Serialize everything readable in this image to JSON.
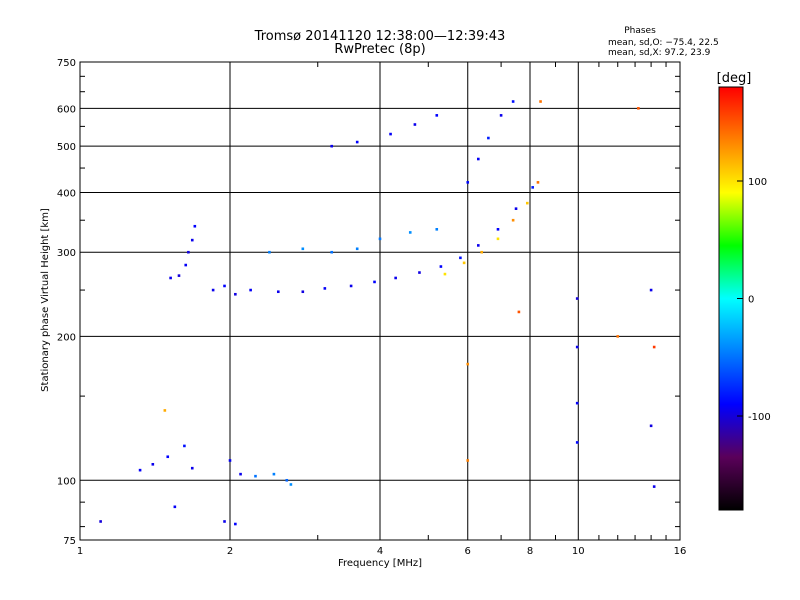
{
  "header": {
    "title": "Tromsø 20141120 12:38:00—12:39:43",
    "subtitle": "RwPretec (8p)",
    "phase_heading": "Phases",
    "phase_o": "mean, sd,O: −75.4, 22.5",
    "phase_x": "mean, sd,X:  97.2, 23.9"
  },
  "chart_data": {
    "type": "scatter",
    "title": "Tromsø 20141120 12:38:00—12:39:43",
    "subtitle": "RwPretec (8p)",
    "xlabel": "Frequency [MHz]",
    "ylabel": "Stationary phase Virtual Height [km]",
    "x_scale": "log",
    "y_scale": "log",
    "xlim": [
      1,
      16
    ],
    "ylim": [
      75,
      750
    ],
    "x_ticks": [
      1,
      2,
      4,
      6,
      8,
      10,
      16
    ],
    "x_tick_labels": [
      "1",
      "2",
      "4",
      "6",
      "8",
      "10",
      "16"
    ],
    "y_ticks": [
      75,
      100,
      200,
      300,
      400,
      500,
      600,
      750
    ],
    "y_tick_labels": [
      "75",
      "100",
      "200",
      "300",
      "400",
      "500",
      "600",
      "750"
    ],
    "grid": true,
    "colorbar": {
      "label": "[deg]",
      "range": [
        -180,
        180
      ],
      "ticks": [
        100,
        0,
        -100
      ],
      "tick_labels": [
        "100",
        "0",
        "-100"
      ],
      "stops": [
        "#000000",
        "#5a005a",
        "#0000ff",
        "#0080ff",
        "#00ffff",
        "#00ff00",
        "#ffff00",
        "#ff8000",
        "#ff0000"
      ]
    },
    "series": [
      {
        "points": [
          [
            1.52,
            265,
            -95
          ],
          [
            1.58,
            268,
            -100
          ],
          [
            1.63,
            282,
            -92
          ],
          [
            1.65,
            300,
            -98
          ],
          [
            1.68,
            318,
            -95
          ],
          [
            1.7,
            340,
            -90
          ],
          [
            1.85,
            250,
            -95
          ],
          [
            1.95,
            255,
            -90
          ],
          [
            2.05,
            245,
            -98
          ],
          [
            2.2,
            250,
            -92
          ],
          [
            2.5,
            248,
            -95
          ],
          [
            2.8,
            248,
            -98
          ],
          [
            3.1,
            252,
            -92
          ],
          [
            3.5,
            255,
            -95
          ],
          [
            3.9,
            260,
            -90
          ],
          [
            4.3,
            265,
            -95
          ],
          [
            4.8,
            272,
            -98
          ],
          [
            5.3,
            280,
            -90
          ],
          [
            5.8,
            292,
            -85
          ],
          [
            6.3,
            310,
            -95
          ],
          [
            6.9,
            335,
            -90
          ],
          [
            7.5,
            370,
            -95
          ],
          [
            8.1,
            410,
            -80
          ],
          [
            5.4,
            270,
            100
          ],
          [
            5.9,
            285,
            110
          ],
          [
            6.4,
            300,
            120
          ],
          [
            6.9,
            320,
            100
          ],
          [
            7.4,
            350,
            130
          ],
          [
            7.9,
            380,
            110
          ],
          [
            8.3,
            420,
            140
          ],
          [
            6.0,
            420,
            -88
          ],
          [
            6.3,
            470,
            -92
          ],
          [
            6.6,
            520,
            -80
          ],
          [
            7.0,
            580,
            -95
          ],
          [
            7.4,
            620,
            -85
          ],
          [
            3.2,
            500,
            -95
          ],
          [
            3.6,
            510,
            -90
          ],
          [
            4.2,
            530,
            -92
          ],
          [
            4.7,
            555,
            -95
          ],
          [
            5.2,
            580,
            -90
          ],
          [
            2.4,
            300,
            -45
          ],
          [
            2.8,
            305,
            -40
          ],
          [
            3.2,
            300,
            -50
          ],
          [
            3.6,
            305,
            -45
          ],
          [
            4.0,
            320,
            -48
          ],
          [
            4.6,
            330,
            -40
          ],
          [
            5.2,
            335,
            -45
          ],
          [
            1.32,
            105,
            -92
          ],
          [
            1.4,
            108,
            -95
          ],
          [
            1.5,
            112,
            -90
          ],
          [
            1.62,
            118,
            -85
          ],
          [
            1.68,
            106,
            -95
          ],
          [
            1.48,
            140,
            120
          ],
          [
            2.0,
            110,
            -92
          ],
          [
            2.1,
            103,
            -95
          ],
          [
            2.25,
            102,
            -50
          ],
          [
            2.45,
            103,
            -45
          ],
          [
            2.6,
            100,
            -55
          ],
          [
            2.65,
            98,
            -40
          ],
          [
            1.1,
            82,
            -100
          ],
          [
            1.55,
            88,
            -92
          ],
          [
            1.95,
            82,
            -95
          ],
          [
            2.05,
            81,
            -90
          ],
          [
            9.95,
            240,
            -100
          ],
          [
            9.95,
            190,
            -95
          ],
          [
            9.95,
            145,
            -92
          ],
          [
            9.95,
            120,
            -88
          ],
          [
            12.0,
            200,
            140
          ],
          [
            13.2,
            600,
            150
          ],
          [
            14.0,
            250,
            -95
          ],
          [
            14.2,
            190,
            160
          ],
          [
            14.0,
            130,
            -98
          ],
          [
            14.2,
            97,
            -95
          ],
          [
            6.0,
            175,
            130
          ],
          [
            6.0,
            110,
            135
          ],
          [
            7.6,
            225,
            150
          ],
          [
            8.4,
            620,
            140
          ]
        ]
      }
    ]
  }
}
